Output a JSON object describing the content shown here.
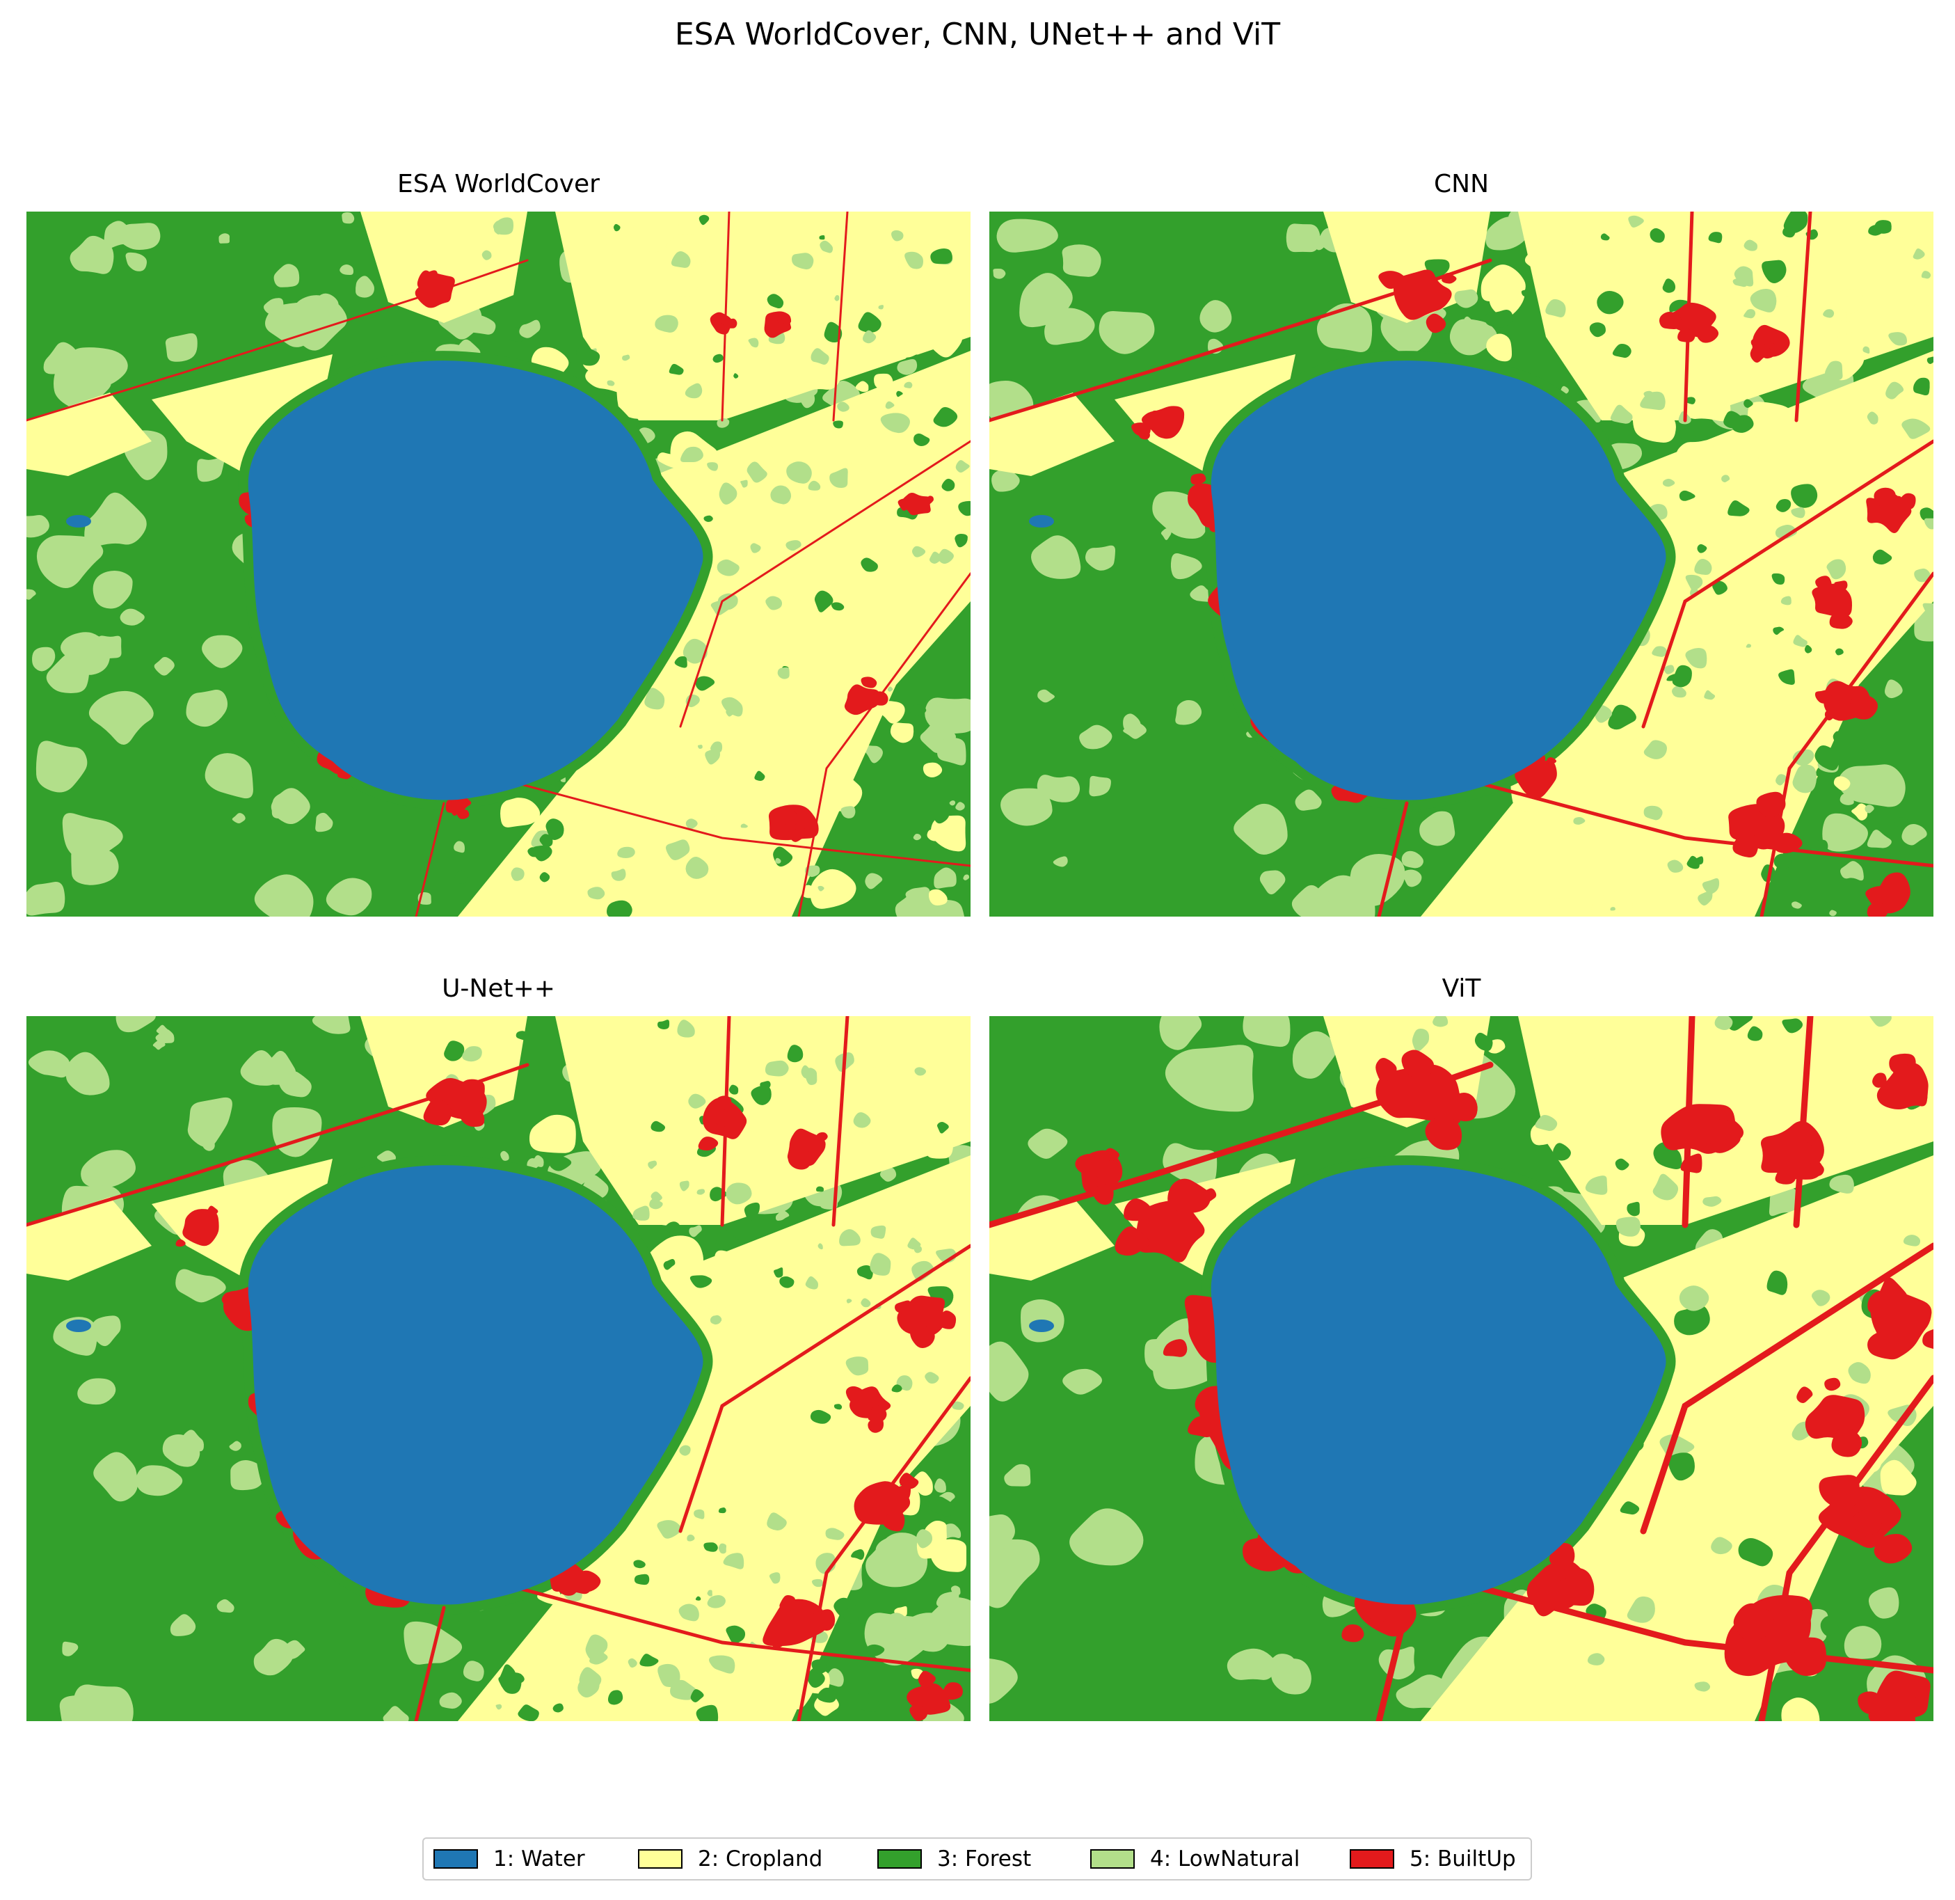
{
  "suptitle": "ESA WorldCover, CNN,  UNet++ and ViT",
  "classes": [
    {
      "id": 1,
      "label": "1: Water",
      "color": "#1f77b4"
    },
    {
      "id": 2,
      "label": "2: Cropland",
      "color": "#ffff99"
    },
    {
      "id": 3,
      "label": "3: Forest",
      "color": "#33a02c"
    },
    {
      "id": 4,
      "label": "4: LowNatural",
      "color": "#b2df8a"
    },
    {
      "id": 5,
      "label": "5: BuiltUp",
      "color": "#e31a1c"
    }
  ],
  "panels": [
    {
      "title": "ESA WorldCover",
      "builtup_extent": "low"
    },
    {
      "title": "CNN",
      "builtup_extent": "medium"
    },
    {
      "title": "U-Net++",
      "builtup_extent": "medium"
    },
    {
      "title": "ViT",
      "builtup_extent": "high"
    }
  ]
}
